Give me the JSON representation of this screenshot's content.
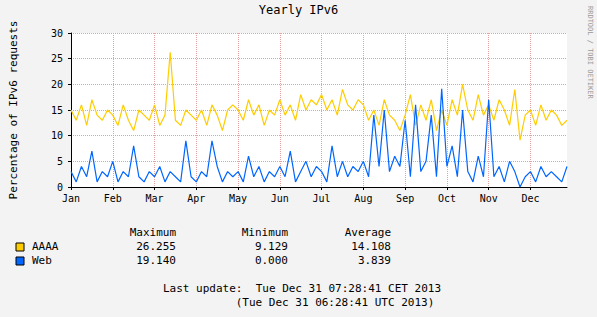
{
  "chart_data": {
    "type": "line",
    "title": "Yearly IPv6",
    "y_label": "Percentage of IPv6 requests",
    "categories": [
      "Jan",
      null,
      null,
      null,
      null,
      null,
      null,
      null,
      "Feb",
      null,
      null,
      null,
      null,
      null,
      null,
      null,
      "Mar",
      null,
      null,
      null,
      null,
      null,
      null,
      null,
      "Apr",
      null,
      null,
      null,
      null,
      null,
      null,
      null,
      "May",
      null,
      null,
      null,
      null,
      null,
      null,
      null,
      "Jun",
      null,
      null,
      null,
      null,
      null,
      null,
      null,
      "Jul",
      null,
      null,
      null,
      null,
      null,
      null,
      null,
      "Aug",
      null,
      null,
      null,
      null,
      null,
      null,
      null,
      "Sep",
      null,
      null,
      null,
      null,
      null,
      null,
      null,
      "Oct",
      null,
      null,
      null,
      null,
      null,
      null,
      null,
      "Nov",
      null,
      null,
      null,
      null,
      null,
      null,
      null,
      "Dec",
      null,
      null,
      null,
      null,
      null,
      null,
      null
    ],
    "series": [
      {
        "name": "AAAA",
        "color": "#ffcc00",
        "values": [
          15,
          13,
          16,
          12,
          17,
          14,
          13,
          15,
          14,
          12,
          16,
          13,
          11,
          15,
          14,
          13,
          16,
          12,
          14,
          26.255,
          13,
          12,
          15,
          14,
          13,
          15,
          12,
          16,
          14,
          11,
          15,
          16,
          15,
          13,
          17,
          14,
          16,
          12,
          15,
          14,
          17,
          14,
          16,
          13,
          18,
          15,
          17,
          16,
          18,
          15,
          17,
          14,
          19,
          16,
          15,
          17,
          16,
          13,
          15,
          12,
          17,
          14,
          13,
          11,
          14,
          18,
          12,
          16,
          13,
          17,
          11,
          15,
          12,
          17,
          14,
          20,
          15,
          13,
          18,
          14,
          16,
          13,
          17,
          15,
          12,
          19,
          9.129,
          14,
          15,
          12,
          16,
          13,
          15,
          14,
          12,
          13
        ]
      },
      {
        "name": "Web",
        "color": "#0066ff",
        "values": [
          3,
          1,
          4,
          2,
          7,
          1,
          3,
          2,
          5,
          1,
          3,
          2,
          8,
          2,
          1,
          3,
          2,
          4,
          1,
          3,
          2,
          1,
          9,
          2,
          1,
          3,
          2,
          9,
          4,
          1,
          3,
          2,
          3,
          1,
          6,
          2,
          4,
          1,
          3,
          2,
          4,
          2,
          7,
          1,
          3,
          5,
          2,
          4,
          3,
          1,
          8,
          2,
          5,
          2,
          4,
          3,
          5,
          2,
          14,
          4,
          15,
          3,
          6,
          4,
          13,
          2,
          16,
          3,
          5,
          14,
          2,
          19.14,
          4,
          8,
          2,
          15,
          3,
          1,
          6,
          2,
          17,
          2,
          4,
          1,
          5,
          3,
          0,
          2,
          3,
          1,
          4,
          2,
          3,
          2,
          1,
          4
        ]
      }
    ],
    "ylim": [
      0,
      30
    ],
    "yticks": [
      0,
      5,
      10,
      15,
      20,
      25,
      30
    ],
    "grid": true,
    "stats": {
      "columns": [
        "Maximum",
        "Minimum",
        "Average"
      ],
      "rows": [
        {
          "name": "AAAA",
          "values": [
            26.255,
            9.129,
            14.108
          ]
        },
        {
          "name": "Web",
          "values": [
            {
              "value": 19.14,
              "label": "19.140"
            },
            {
              "value": 0,
              "label": "0.000"
            },
            3.839
          ]
        }
      ]
    },
    "annotations": [
      "Last update:  Tue Dec 31 07:28:41 CET 2013",
      "(Tue Dec 31 06:28:41 UTC 2013)",
      "RRDTOOL / TOBI OETIKER"
    ]
  }
}
